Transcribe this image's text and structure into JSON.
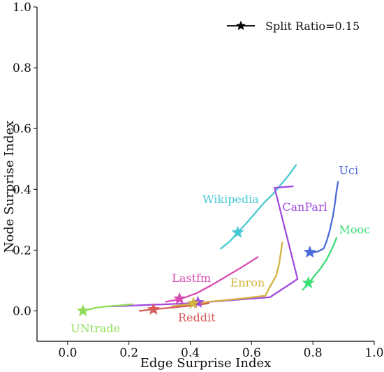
{
  "chart_data": {
    "type": "line",
    "xlabel": "Edge Surprise Index",
    "ylabel": "Node Surprise Index",
    "xlim": [
      -0.1,
      1.0
    ],
    "ylim": [
      -0.1,
      1.0
    ],
    "x_ticks": [
      0.0,
      0.2,
      0.4,
      0.6,
      0.8,
      1.0
    ],
    "y_ticks": [
      0.0,
      0.2,
      0.4,
      0.6,
      0.8,
      1.0
    ],
    "x_tick_labels": [
      "0.0",
      "0.2",
      "0.4",
      "0.6",
      "0.8",
      "1.0"
    ],
    "y_tick_labels": [
      "0.0",
      "0.2",
      "0.4",
      "0.6",
      "0.8",
      "1.0"
    ],
    "legend": {
      "label": "Split Ratio=0.15",
      "marker": "star",
      "placement": "top-right"
    },
    "grid": false,
    "series": [
      {
        "name": "Wikipedia",
        "color": "#47C9D3",
        "points": [
          {
            "x": 0.5,
            "y": 0.205
          },
          {
            "x": 0.53,
            "y": 0.23
          },
          {
            "x": 0.555,
            "y": 0.258
          },
          {
            "x": 0.58,
            "y": 0.285
          },
          {
            "x": 0.61,
            "y": 0.32
          },
          {
            "x": 0.64,
            "y": 0.355
          },
          {
            "x": 0.67,
            "y": 0.385
          },
          {
            "x": 0.695,
            "y": 0.415
          },
          {
            "x": 0.72,
            "y": 0.445
          },
          {
            "x": 0.745,
            "y": 0.48
          }
        ],
        "star": {
          "x": 0.555,
          "y": 0.258
        }
      },
      {
        "name": "CanParl",
        "color": "#A24BDF",
        "points": [
          {
            "x": 0.145,
            "y": 0.015
          },
          {
            "x": 0.4,
            "y": 0.025
          },
          {
            "x": 0.66,
            "y": 0.045
          },
          {
            "x": 0.75,
            "y": 0.105
          },
          {
            "x": 0.675,
            "y": 0.405
          },
          {
            "x": 0.735,
            "y": 0.41
          }
        ],
        "star": {
          "x": 0.425,
          "y": 0.028
        }
      },
      {
        "name": "Uci",
        "color": "#4C6BDA",
        "points": [
          {
            "x": 0.79,
            "y": 0.19
          },
          {
            "x": 0.815,
            "y": 0.195
          },
          {
            "x": 0.835,
            "y": 0.205
          },
          {
            "x": 0.845,
            "y": 0.23
          },
          {
            "x": 0.855,
            "y": 0.265
          },
          {
            "x": 0.865,
            "y": 0.31
          },
          {
            "x": 0.872,
            "y": 0.355
          },
          {
            "x": 0.877,
            "y": 0.395
          },
          {
            "x": 0.882,
            "y": 0.425
          }
        ],
        "star": {
          "x": 0.79,
          "y": 0.193
        }
      },
      {
        "name": "Mooc",
        "color": "#3DDD78",
        "points": [
          {
            "x": 0.767,
            "y": 0.07
          },
          {
            "x": 0.785,
            "y": 0.09
          },
          {
            "x": 0.805,
            "y": 0.115
          },
          {
            "x": 0.825,
            "y": 0.14
          },
          {
            "x": 0.845,
            "y": 0.17
          },
          {
            "x": 0.865,
            "y": 0.21
          },
          {
            "x": 0.877,
            "y": 0.24
          }
        ],
        "star": {
          "x": 0.785,
          "y": 0.092
        }
      },
      {
        "name": "Lastfm",
        "color": "#D84BB1",
        "points": [
          {
            "x": 0.32,
            "y": 0.03
          },
          {
            "x": 0.365,
            "y": 0.038
          },
          {
            "x": 0.42,
            "y": 0.058
          },
          {
            "x": 0.47,
            "y": 0.085
          },
          {
            "x": 0.52,
            "y": 0.115
          },
          {
            "x": 0.57,
            "y": 0.145
          },
          {
            "x": 0.62,
            "y": 0.177
          }
        ],
        "star": {
          "x": 0.365,
          "y": 0.04
        }
      },
      {
        "name": "Enron",
        "color": "#D2B441",
        "points": [
          {
            "x": 0.34,
            "y": 0.015
          },
          {
            "x": 0.46,
            "y": 0.03
          },
          {
            "x": 0.58,
            "y": 0.042
          },
          {
            "x": 0.645,
            "y": 0.05
          },
          {
            "x": 0.66,
            "y": 0.08
          },
          {
            "x": 0.68,
            "y": 0.115
          },
          {
            "x": 0.69,
            "y": 0.155
          },
          {
            "x": 0.695,
            "y": 0.19
          },
          {
            "x": 0.7,
            "y": 0.225
          }
        ],
        "star": {
          "x": 0.41,
          "y": 0.025
        }
      },
      {
        "name": "Reddit",
        "color": "#D85A5A",
        "points": [
          {
            "x": 0.235,
            "y": 0.0
          },
          {
            "x": 0.28,
            "y": 0.005
          },
          {
            "x": 0.35,
            "y": 0.012
          },
          {
            "x": 0.41,
            "y": 0.018
          },
          {
            "x": 0.46,
            "y": 0.025
          }
        ],
        "star": {
          "x": 0.28,
          "y": 0.005
        }
      },
      {
        "name": "UNtrade",
        "color": "#8FDD58",
        "points": [
          {
            "x": 0.05,
            "y": 0.0
          },
          {
            "x": 0.09,
            "y": 0.01
          },
          {
            "x": 0.13,
            "y": 0.015
          },
          {
            "x": 0.17,
            "y": 0.018
          },
          {
            "x": 0.21,
            "y": 0.022
          }
        ],
        "star": {
          "x": 0.05,
          "y": 0.0
        }
      }
    ],
    "series_labels": [
      {
        "name": "Wikipedia",
        "x": 0.44,
        "y": 0.355
      },
      {
        "name": "CanParl",
        "x": 0.7,
        "y": 0.33
      },
      {
        "name": "Uci",
        "x": 0.885,
        "y": 0.45
      },
      {
        "name": "Mooc",
        "x": 0.885,
        "y": 0.255
      },
      {
        "name": "Lastfm",
        "x": 0.34,
        "y": 0.095
      },
      {
        "name": "Enron",
        "x": 0.53,
        "y": 0.08
      },
      {
        "name": "Reddit",
        "x": 0.36,
        "y": -0.035
      },
      {
        "name": "UNtrade",
        "x": 0.01,
        "y": -0.07
      }
    ]
  }
}
